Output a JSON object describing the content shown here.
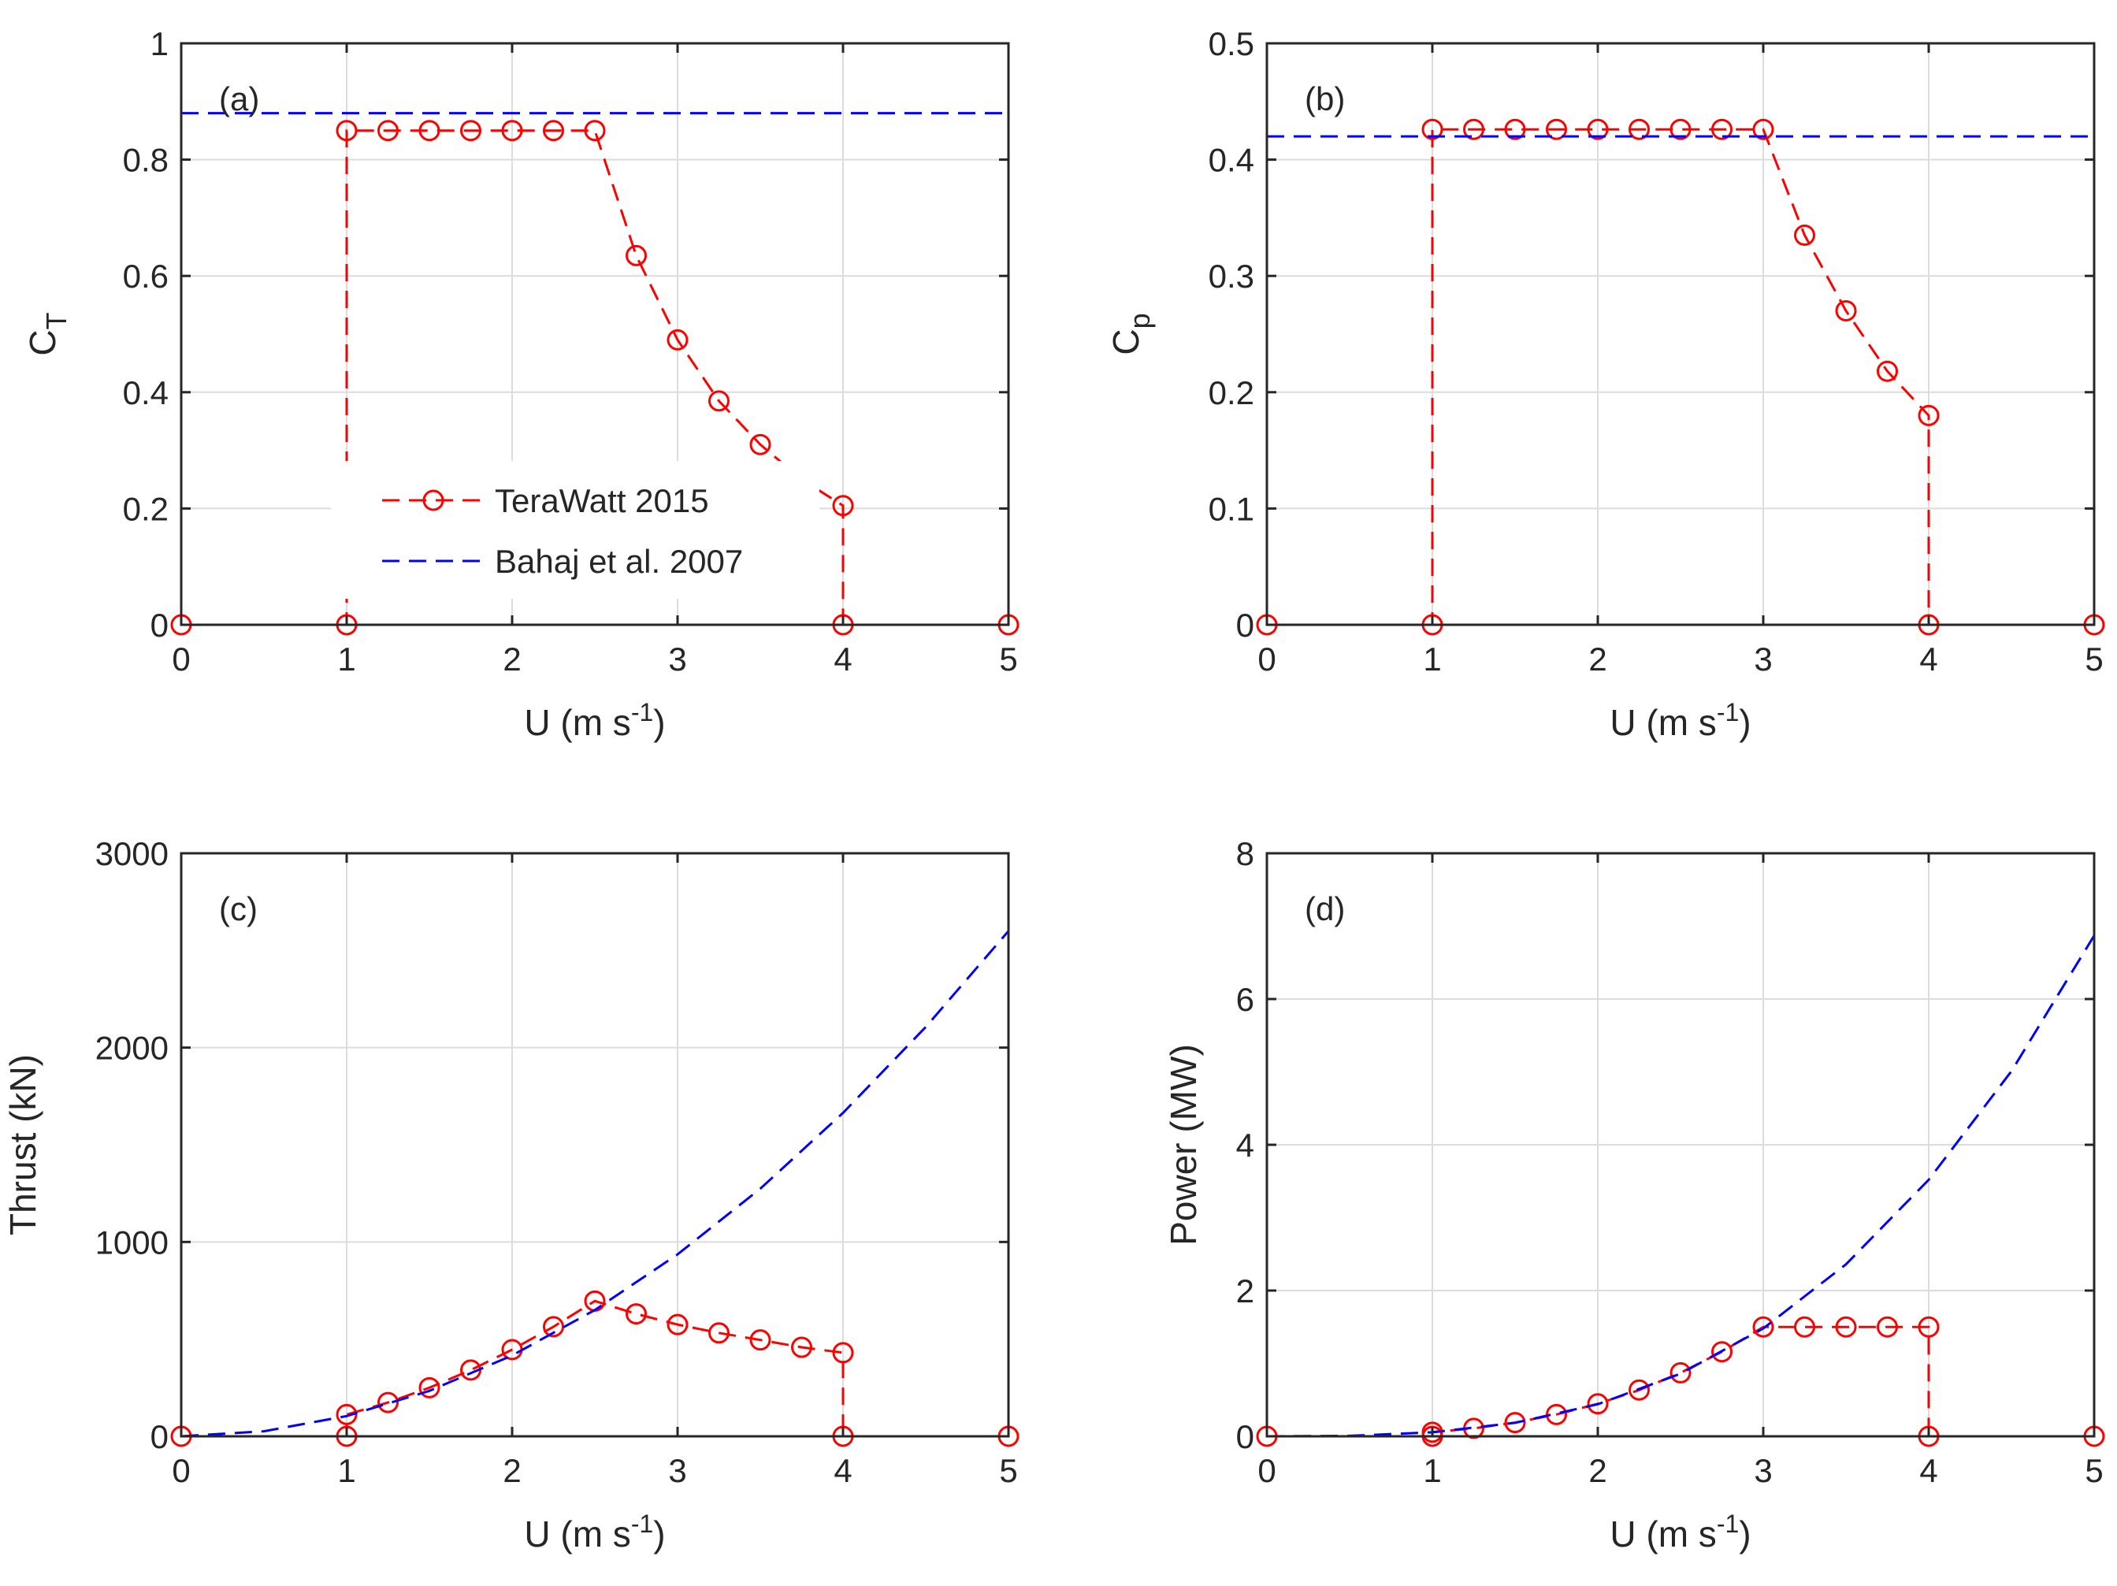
{
  "colors": {
    "terawatt": "#ff0000",
    "bahaj": "#0000ff",
    "axis": "#262626",
    "grid": "#dcdcdc"
  },
  "legend": {
    "location": "center-left of panel (a)",
    "entries": [
      "TeraWatt 2015",
      "Bahaj et al. 2007"
    ]
  },
  "chart_data": [
    {
      "id": "a",
      "type": "line",
      "panel_label": "(a)",
      "xlabel": "U (m s",
      "xlabel_sup": "-1",
      "xlabel_end": ")",
      "ylabel": "C",
      "ylabel_sub": "T",
      "xlim": [
        0,
        5
      ],
      "ylim": [
        0,
        1
      ],
      "xticks": [
        0,
        1,
        2,
        3,
        4,
        5
      ],
      "xtick_labels": [
        "0",
        "1",
        "2",
        "3",
        "4",
        "5"
      ],
      "yticks": [
        0,
        0.2,
        0.4,
        0.6,
        0.8,
        1
      ],
      "ytick_labels": [
        "0",
        "0.2",
        "0.4",
        "0.6",
        "0.8",
        "1"
      ],
      "series": [
        {
          "name": "TeraWatt 2015",
          "style": "dashed-circles",
          "color": "#ff0000",
          "x": [
            0,
            1,
            1,
            1.25,
            1.5,
            1.75,
            2,
            2.25,
            2.5,
            2.75,
            3,
            3.25,
            3.5,
            3.75,
            4,
            4,
            5
          ],
          "y": [
            0,
            0,
            0.85,
            0.85,
            0.85,
            0.85,
            0.85,
            0.85,
            0.85,
            0.635,
            0.49,
            0.385,
            0.31,
            0.25,
            0.205,
            0,
            0
          ]
        },
        {
          "name": "Bahaj et al. 2007",
          "style": "dashed",
          "color": "#0000ff",
          "x": [
            0,
            5
          ],
          "y": [
            0.88,
            0.88
          ]
        }
      ]
    },
    {
      "id": "b",
      "type": "line",
      "panel_label": "(b)",
      "xlabel": "U (m s",
      "xlabel_sup": "-1",
      "xlabel_end": ")",
      "ylabel": "C",
      "ylabel_sub": "p",
      "xlim": [
        0,
        5
      ],
      "ylim": [
        0,
        0.5
      ],
      "xticks": [
        0,
        1,
        2,
        3,
        4,
        5
      ],
      "xtick_labels": [
        "0",
        "1",
        "2",
        "3",
        "4",
        "5"
      ],
      "yticks": [
        0,
        0.1,
        0.2,
        0.3,
        0.4,
        0.5
      ],
      "ytick_labels": [
        "0",
        "0.1",
        "0.2",
        "0.3",
        "0.4",
        "0.5"
      ],
      "series": [
        {
          "name": "TeraWatt 2015",
          "style": "dashed-circles",
          "color": "#ff0000",
          "x": [
            0,
            1,
            1,
            1.25,
            1.5,
            1.75,
            2,
            2.25,
            2.5,
            2.75,
            3,
            3.25,
            3.5,
            3.75,
            4,
            4,
            5
          ],
          "y": [
            0,
            0,
            0.426,
            0.426,
            0.426,
            0.426,
            0.426,
            0.426,
            0.426,
            0.426,
            0.426,
            0.335,
            0.27,
            0.218,
            0.18,
            0,
            0
          ]
        },
        {
          "name": "Bahaj et al. 2007",
          "style": "dashed",
          "color": "#0000ff",
          "x": [
            0,
            5
          ],
          "y": [
            0.42,
            0.42
          ]
        }
      ]
    },
    {
      "id": "c",
      "type": "line",
      "panel_label": "(c)",
      "xlabel": "U (m s",
      "xlabel_sup": "-1",
      "xlabel_end": ")",
      "ylabel": "Thrust (kN)",
      "ylabel_sub": "",
      "xlim": [
        0,
        5
      ],
      "ylim": [
        0,
        3000
      ],
      "xticks": [
        0,
        1,
        2,
        3,
        4,
        5
      ],
      "xtick_labels": [
        "0",
        "1",
        "2",
        "3",
        "4",
        "5"
      ],
      "yticks": [
        0,
        1000,
        2000,
        3000
      ],
      "ytick_labels": [
        "0",
        "1000",
        "2000",
        "3000"
      ],
      "series": [
        {
          "name": "TeraWatt 2015",
          "style": "dashed-circles",
          "color": "#ff0000",
          "x": [
            0,
            1,
            1,
            1.25,
            1.5,
            1.75,
            2,
            2.25,
            2.5,
            2.75,
            3,
            3.25,
            3.5,
            3.75,
            4,
            4,
            5
          ],
          "y": [
            0,
            0,
            112,
            174,
            250,
            341,
            446,
            564,
            696,
            630,
            575,
            532,
            496,
            458,
            430,
            0,
            0
          ]
        },
        {
          "name": "Bahaj et al. 2007",
          "style": "dashed",
          "color": "#0000ff",
          "x": [
            0,
            0.5,
            1,
            1.5,
            2,
            2.5,
            3,
            3.5,
            4,
            4.5,
            5
          ],
          "y": [
            0,
            26,
            104,
            234,
            416,
            650,
            936,
            1274,
            1664,
            2106,
            2600
          ]
        }
      ]
    },
    {
      "id": "d",
      "type": "line",
      "panel_label": "(d)",
      "xlabel": "U (m s",
      "xlabel_sup": "-1",
      "xlabel_end": ")",
      "ylabel": "Power (MW)",
      "ylabel_sub": "",
      "xlim": [
        0,
        5
      ],
      "ylim": [
        0,
        8
      ],
      "xticks": [
        0,
        1,
        2,
        3,
        4,
        5
      ],
      "xtick_labels": [
        "0",
        "1",
        "2",
        "3",
        "4",
        "5"
      ],
      "yticks": [
        0,
        2,
        4,
        6,
        8
      ],
      "ytick_labels": [
        "0",
        "2",
        "4",
        "6",
        "8"
      ],
      "series": [
        {
          "name": "TeraWatt 2015",
          "style": "dashed-circles",
          "color": "#ff0000",
          "x": [
            0,
            1,
            1,
            1.25,
            1.5,
            1.75,
            2,
            2.25,
            2.5,
            2.75,
            3,
            3.25,
            3.5,
            3.75,
            4,
            4,
            5
          ],
          "y": [
            0,
            0,
            0.056,
            0.109,
            0.188,
            0.299,
            0.446,
            0.635,
            0.871,
            1.16,
            1.5,
            1.5,
            1.5,
            1.5,
            1.5,
            0,
            0
          ]
        },
        {
          "name": "Bahaj et al. 2007",
          "style": "dashed",
          "color": "#0000ff",
          "x": [
            0,
            0.5,
            1,
            1.5,
            2,
            2.5,
            3,
            3.5,
            4,
            4.5,
            5
          ],
          "y": [
            0,
            0.007,
            0.055,
            0.185,
            0.44,
            0.86,
            1.48,
            2.36,
            3.52,
            5.01,
            6.87
          ]
        }
      ]
    }
  ]
}
